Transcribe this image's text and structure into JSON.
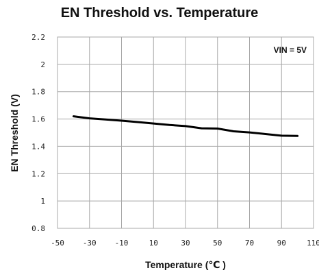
{
  "chart_data": {
    "type": "line",
    "title": "EN Threshold vs. Temperature",
    "xlabel": "Temperature (℃ )",
    "ylabel": "EN Threshold (V)",
    "annotation": "VIN = 5V",
    "xlim": [
      -50,
      110
    ],
    "ylim": [
      0.8,
      2.2
    ],
    "xticks": [
      -50,
      -30,
      -10,
      10,
      30,
      50,
      70,
      90,
      110
    ],
    "yticks": [
      0.8,
      1,
      1.2,
      1.4,
      1.6,
      1.8,
      2,
      2.2
    ],
    "grid": true,
    "series": [
      {
        "x": [
          -40,
          -30,
          -20,
          -10,
          0,
          10,
          20,
          30,
          40,
          50,
          60,
          70,
          80,
          90,
          100
        ],
        "y": [
          1.62,
          1.605,
          1.597,
          1.588,
          1.578,
          1.567,
          1.556,
          1.548,
          1.532,
          1.53,
          1.51,
          1.502,
          1.49,
          1.478,
          1.476
        ],
        "color": "#000000"
      }
    ]
  }
}
